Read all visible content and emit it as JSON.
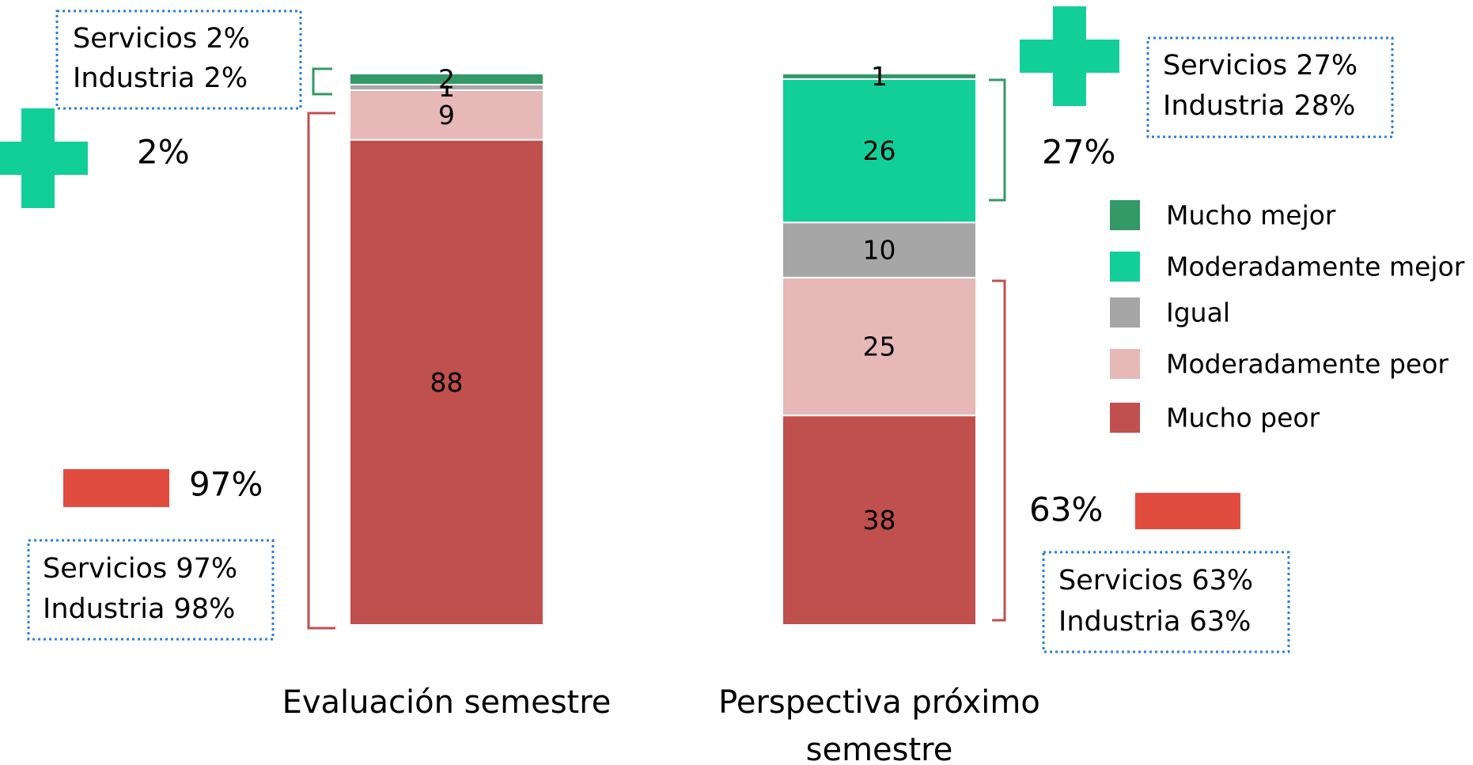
{
  "chart_data": {
    "type": "stacked_bar",
    "categories": [
      "Evaluación semestre",
      "Perspectiva próximo semestre"
    ],
    "ylim": [
      0,
      100
    ],
    "series": [
      {
        "name": "Mucho peor",
        "color": "#c0504d",
        "values": [
          88,
          38
        ]
      },
      {
        "name": "Moderadamente peor",
        "color": "#e6b8b7",
        "values": [
          9,
          25
        ]
      },
      {
        "name": "Igual",
        "color": "#a6a6a6",
        "values": [
          1,
          10
        ]
      },
      {
        "name": "Moderadamente mejor",
        "color": "#12cf9a",
        "values": [
          null,
          26
        ]
      },
      {
        "name": "Mucho mejor",
        "color": "#339966",
        "values": [
          2,
          1
        ]
      }
    ],
    "annotations": [
      {
        "text": "Servicios 2%"
      },
      {
        "text": "Industria 2%"
      },
      {
        "text": "2%"
      },
      {
        "text": "97%"
      },
      {
        "text": "Servicios 97%"
      },
      {
        "text": "Industria 98%"
      },
      {
        "text": "Servicios 27%"
      },
      {
        "text": "Industria 28%"
      },
      {
        "text": "27%"
      },
      {
        "text": "63%"
      },
      {
        "text": "Servicios 63%"
      },
      {
        "text": "Industria 63%"
      }
    ]
  }
}
